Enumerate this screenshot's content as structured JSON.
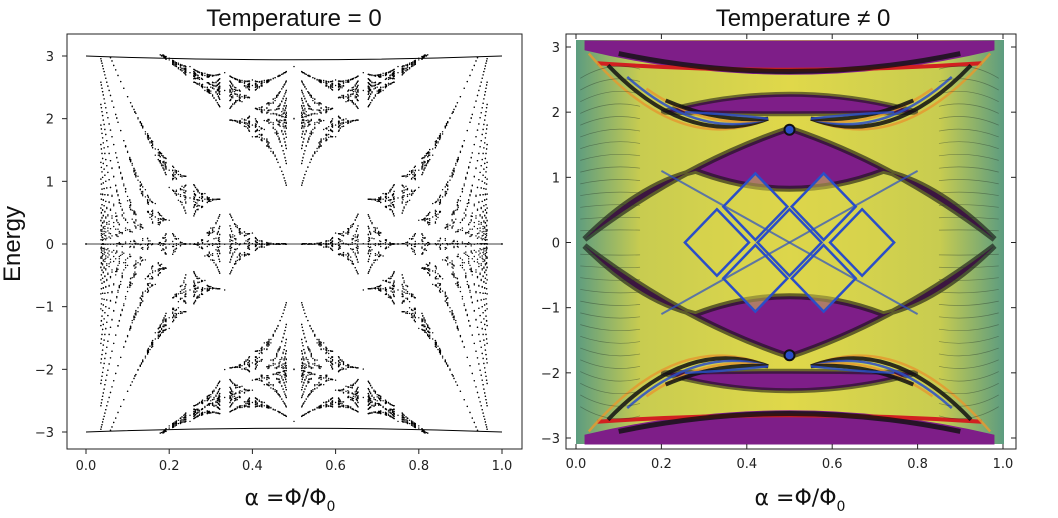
{
  "chart_data": [
    {
      "type": "line",
      "title": "Temperature = 0",
      "ylabel": "Energy",
      "xlabel": "α =Φ/Φ",
      "xlabel_subscript": "0",
      "xlim": [
        0,
        1
      ],
      "ylim": [
        -3,
        3
      ],
      "x_ticks": [
        "0.0",
        "0.2",
        "0.4",
        "0.6",
        "0.8",
        "1.0"
      ],
      "y_ticks": [
        "3",
        "2",
        "1",
        "0",
        "−1",
        "−2",
        "−3"
      ],
      "grid": false,
      "line_color": "#000000",
      "series_description_values": {
        "band_edges_at_alpha_0": [
          -3,
          3
        ],
        "band_edges_at_alpha_1": [
          -3,
          3
        ],
        "values_at_alpha_0_5": [
          -2.83,
          -1.73,
          0,
          1.73,
          2.83
        ]
      }
    },
    {
      "type": "heatmap",
      "title": "Temperature ≠ 0",
      "xlabel": "α =Φ/Φ",
      "xlabel_subscript": "0",
      "xlim": [
        0,
        1
      ],
      "ylim": [
        -3.1,
        3.1
      ],
      "x_ticks": [
        "0.0",
        "0.2",
        "0.4",
        "0.6",
        "0.8",
        "1.0"
      ],
      "y_ticks": [
        "3",
        "2",
        "1",
        "0",
        "−1",
        "−2",
        "−3"
      ],
      "colors": {
        "background_low": "#7e1e88",
        "mid_green": "#5fa07a",
        "yellow": "#e0d84a",
        "orange": "#e49a30",
        "red": "#d22020",
        "blue_lines": "#2a4ec8",
        "dark_bands": "#101010"
      }
    }
  ]
}
